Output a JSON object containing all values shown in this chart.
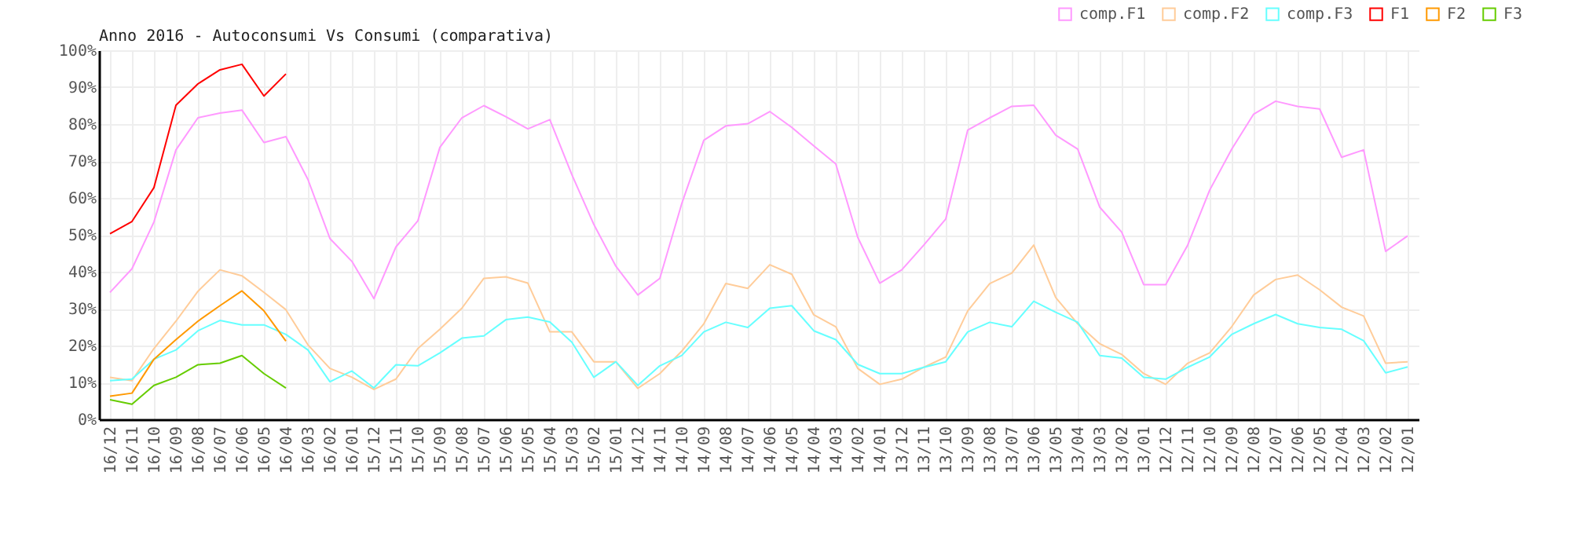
{
  "chart_data": {
    "type": "line",
    "title": "Anno 2016 - Autoconsumi Vs Consumi (comparativa)",
    "categories": [
      "16/12",
      "16/11",
      "16/10",
      "16/09",
      "16/08",
      "16/07",
      "16/06",
      "16/05",
      "16/04",
      "16/03",
      "16/02",
      "16/01",
      "15/12",
      "15/11",
      "15/10",
      "15/09",
      "15/08",
      "15/07",
      "15/06",
      "15/05",
      "15/04",
      "15/03",
      "15/02",
      "15/01",
      "14/12",
      "14/11",
      "14/10",
      "14/09",
      "14/08",
      "14/07",
      "14/06",
      "14/05",
      "14/04",
      "14/03",
      "14/02",
      "14/01",
      "13/12",
      "13/11",
      "13/10",
      "13/09",
      "13/08",
      "13/07",
      "13/06",
      "13/05",
      "13/04",
      "13/03",
      "13/02",
      "13/01",
      "12/12",
      "12/11",
      "12/10",
      "12/09",
      "12/08",
      "12/07",
      "12/06",
      "12/05",
      "12/04",
      "12/03",
      "12/02",
      "12/01"
    ],
    "series": [
      {
        "name": "comp.F1",
        "color": "#ff99ff",
        "values": [
          34.4,
          40.8,
          53.5,
          73,
          81.7,
          83,
          83.8,
          75,
          76.6,
          65,
          49,
          42.8,
          32.7,
          46.7,
          53.8,
          73.7,
          81.7,
          85,
          82,
          78.7,
          81.2,
          66.3,
          52.8,
          41.5,
          33.7,
          38.2,
          58.5,
          75.6,
          79.5,
          80.1,
          83.4,
          79.1,
          74.1,
          69.2,
          49.3,
          36.9,
          40.5,
          47.2,
          54.3,
          78.4,
          81.7,
          84.8,
          85.1,
          77,
          73.2,
          57.5,
          50.7,
          36.5,
          36.5,
          47.2,
          62.1,
          73.2,
          82.7,
          86.2,
          84.8,
          84.1,
          71,
          73,
          45.5,
          49.7
        ]
      },
      {
        "name": "comp.F2",
        "color": "#ffcc99",
        "values": [
          11.4,
          10.5,
          19.2,
          26.6,
          34.7,
          40.5,
          38.9,
          34.4,
          29.7,
          20.2,
          13.8,
          11.4,
          8.1,
          10.9,
          19.2,
          24.4,
          30.1,
          38.2,
          38.6,
          36.9,
          23.7,
          23.7,
          15.6,
          15.6,
          8.4,
          12.4,
          18.5,
          25.9,
          36.8,
          35.5,
          41.9,
          39.3,
          28.3,
          25.1,
          13.8,
          9.5,
          10.9,
          14.1,
          16.9,
          29.4,
          36.8,
          39.6,
          47.2,
          33,
          25.9,
          20.5,
          17.6,
          12.4,
          9.5,
          15.2,
          18,
          25.1,
          33.7,
          37.9,
          39.1,
          35.1,
          30.4,
          28,
          15.2,
          15.6
        ]
      },
      {
        "name": "comp.F3",
        "color": "#66ffff",
        "values": [
          10.5,
          10.9,
          16.3,
          18.8,
          24,
          26.8,
          25.6,
          25.6,
          23,
          18.8,
          10.2,
          13.1,
          8.5,
          14.8,
          14.5,
          18,
          22,
          22.6,
          27,
          27.7,
          26.4,
          20.9,
          11.4,
          15.6,
          9.2,
          14.5,
          17.3,
          23.7,
          26.3,
          24.9,
          30.1,
          30.8,
          24,
          21.6,
          14.9,
          12.4,
          12.4,
          14.1,
          15.6,
          23.7,
          26.3,
          25.1,
          32,
          29,
          26.3,
          17.3,
          16.6,
          11.4,
          10.9,
          14.1,
          16.9,
          23,
          25.9,
          28.4,
          25.9,
          24.9,
          24.4,
          21.3,
          12.6,
          14.2
        ]
      },
      {
        "name": "F1",
        "color": "#ff0000",
        "values": [
          50.3,
          53.6,
          62.8,
          85.1,
          90.9,
          94.7,
          96.2,
          87.6,
          93.6,
          null,
          null,
          null,
          null,
          null,
          null,
          null,
          null,
          null,
          null,
          null,
          null,
          null,
          null,
          null,
          null,
          null,
          null,
          null,
          null,
          null,
          null,
          null,
          null,
          null,
          null,
          null,
          null,
          null,
          null,
          null,
          null,
          null,
          null,
          null,
          null,
          null,
          null,
          null,
          null,
          null,
          null,
          null,
          null,
          null,
          null,
          null,
          null,
          null,
          null,
          null
        ]
      },
      {
        "name": "F2",
        "color": "#ff9900",
        "values": [
          6.3,
          7.1,
          16.3,
          21.6,
          26.6,
          30.8,
          34.8,
          29.4,
          21.2,
          null,
          null,
          null,
          null,
          null,
          null,
          null,
          null,
          null,
          null,
          null,
          null,
          null,
          null,
          null,
          null,
          null,
          null,
          null,
          null,
          null,
          null,
          null,
          null,
          null,
          null,
          null,
          null,
          null,
          null,
          null,
          null,
          null,
          null,
          null,
          null,
          null,
          null,
          null,
          null,
          null,
          null,
          null,
          null,
          null,
          null,
          null,
          null,
          null,
          null,
          null
        ]
      },
      {
        "name": "F3",
        "color": "#66cc00",
        "values": [
          5.3,
          4.1,
          9.2,
          11.4,
          14.8,
          15.2,
          17.3,
          12.4,
          8.5,
          null,
          null,
          null,
          null,
          null,
          null,
          null,
          null,
          null,
          null,
          null,
          null,
          null,
          null,
          null,
          null,
          null,
          null,
          null,
          null,
          null,
          null,
          null,
          null,
          null,
          null,
          null,
          null,
          null,
          null,
          null,
          null,
          null,
          null,
          null,
          null,
          null,
          null,
          null,
          null,
          null,
          null,
          null,
          null,
          null,
          null,
          null,
          null,
          null,
          null,
          null
        ]
      }
    ],
    "ylim": [
      0,
      100
    ],
    "yticks": [
      {
        "value": 0,
        "label": "0%"
      },
      {
        "value": 10,
        "label": "10%"
      },
      {
        "value": 20,
        "label": "20%"
      },
      {
        "value": 30,
        "label": "30%"
      },
      {
        "value": 40,
        "label": "40%"
      },
      {
        "value": 50,
        "label": "50%"
      },
      {
        "value": 60,
        "label": "60%"
      },
      {
        "value": 70,
        "label": "70%"
      },
      {
        "value": 80,
        "label": "80%"
      },
      {
        "value": 90,
        "label": "90%"
      },
      {
        "value": 100,
        "label": "100%"
      }
    ],
    "grid": true,
    "legend": "top right",
    "marker": "none",
    "line_style": "solid"
  }
}
